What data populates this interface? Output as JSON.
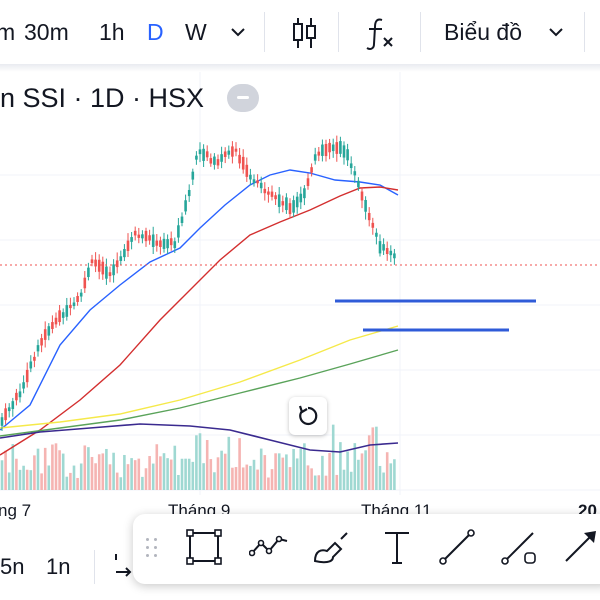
{
  "toolbar": {
    "intervals": [
      {
        "label": "m",
        "active": false
      },
      {
        "label": "30m",
        "active": false
      },
      {
        "label": "1h",
        "active": false
      },
      {
        "label": "D",
        "active": true
      },
      {
        "label": "W",
        "active": false
      }
    ],
    "interval_dropdown_icon": "chevron-down-icon",
    "candles_icon": "candlestick-icon",
    "indicators_icon": "fx-icon",
    "chart_type_label": "Biểu đồ",
    "chart_type_dropdown_icon": "chevron-down-icon"
  },
  "symbol": {
    "title": "n SSI · 1D · HSX",
    "collapse_icon": "minus-icon"
  },
  "chart": {
    "reset_icon": "reset-icon",
    "x_axis_labels": [
      "ng 7",
      "Tháng 9",
      "Tháng 11",
      "20"
    ]
  },
  "bottom_bar": {
    "items": [
      "5n",
      "1n"
    ],
    "date_range_icon": "date-range-icon"
  },
  "drawing_toolbar": {
    "grip_icon": "drag-grip-icon",
    "tools": [
      "rectangle-icon",
      "path-icon",
      "brush-icon",
      "text-icon",
      "trend-line-icon",
      "ray-icon",
      "arrow-icon"
    ]
  },
  "colors": {
    "accent": "#2962ff",
    "up_candle": "#26a69a",
    "down_candle": "#ef5350",
    "ma_blue": "#2962ff",
    "ma_red": "#d32f2f",
    "ma_yellow": "#f5e94a",
    "ma_green": "#5aa35a",
    "volume_ma": "#3a2a8f",
    "horizontal_lines": "#2f5bd8",
    "current_price_line": "#ef5350"
  }
}
